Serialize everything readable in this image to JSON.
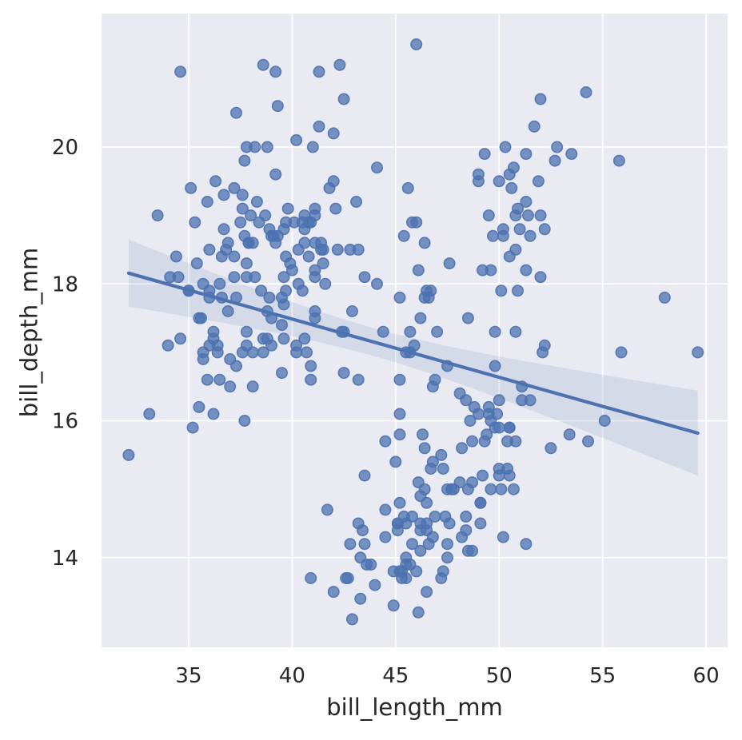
{
  "chart_data": {
    "type": "scatter",
    "title": "",
    "xlabel": "bill_length_mm",
    "ylabel": "bill_depth_mm",
    "x_ticks": [
      35,
      40,
      45,
      50,
      55,
      60
    ],
    "y_ticks": [
      14,
      16,
      18,
      20
    ],
    "x_domain": [
      30.79,
      61.04
    ],
    "y_domain": [
      12.69,
      21.95
    ],
    "grid": true,
    "legend": "none",
    "colors": {
      "point": "#4c72b0",
      "point_fill_opacity": 0.75,
      "point_edge_opacity": 0.9,
      "line": "#4c72b0",
      "band": "#4c72b0",
      "band_opacity": 0.13,
      "plot_background": "#eaeaf2",
      "grid_line": "#ffffff",
      "text": "#262626"
    },
    "regression": {
      "slope": -0.08502,
      "intercept": 20.8865,
      "x_start": 32.1,
      "x_end": 59.6
    },
    "ci_band": {
      "t": 1.967,
      "s": 1.92,
      "n": 342,
      "x_mean": 43.92,
      "sxx": 10163
    },
    "points": [
      [
        39.1,
        18.7
      ],
      [
        39.5,
        17.4
      ],
      [
        40.3,
        18.0
      ],
      [
        36.7,
        19.3
      ],
      [
        39.3,
        20.6
      ],
      [
        38.9,
        17.8
      ],
      [
        39.2,
        19.6
      ],
      [
        34.1,
        18.1
      ],
      [
        42.0,
        20.2
      ],
      [
        37.8,
        17.1
      ],
      [
        37.8,
        17.3
      ],
      [
        41.1,
        17.6
      ],
      [
        38.6,
        21.2
      ],
      [
        34.6,
        21.1
      ],
      [
        36.6,
        17.8
      ],
      [
        38.7,
        19.0
      ],
      [
        42.5,
        20.7
      ],
      [
        34.4,
        18.4
      ],
      [
        46.0,
        21.5
      ],
      [
        37.8,
        18.3
      ],
      [
        37.7,
        18.7
      ],
      [
        35.9,
        19.2
      ],
      [
        38.2,
        18.1
      ],
      [
        38.8,
        17.2
      ],
      [
        35.3,
        18.9
      ],
      [
        40.6,
        18.6
      ],
      [
        40.5,
        17.9
      ],
      [
        37.9,
        18.6
      ],
      [
        40.5,
        18.9
      ],
      [
        39.5,
        16.7
      ],
      [
        37.2,
        18.1
      ],
      [
        39.5,
        17.8
      ],
      [
        40.9,
        18.9
      ],
      [
        36.4,
        17.0
      ],
      [
        39.2,
        21.1
      ],
      [
        38.8,
        20.0
      ],
      [
        42.2,
        18.5
      ],
      [
        37.6,
        19.3
      ],
      [
        39.8,
        19.1
      ],
      [
        36.5,
        18.0
      ],
      [
        40.8,
        18.4
      ],
      [
        36.0,
        18.5
      ],
      [
        44.1,
        19.7
      ],
      [
        37.0,
        16.9
      ],
      [
        39.6,
        18.8
      ],
      [
        41.1,
        19.0
      ],
      [
        37.5,
        18.9
      ],
      [
        36.0,
        17.9
      ],
      [
        42.3,
        21.2
      ],
      [
        39.6,
        17.7
      ],
      [
        40.1,
        18.9
      ],
      [
        35.0,
        17.9
      ],
      [
        42.0,
        19.5
      ],
      [
        34.5,
        18.1
      ],
      [
        41.4,
        18.6
      ],
      [
        39.0,
        17.5
      ],
      [
        40.6,
        18.8
      ],
      [
        36.5,
        16.6
      ],
      [
        37.6,
        19.1
      ],
      [
        35.7,
        16.9
      ],
      [
        41.3,
        21.1
      ],
      [
        37.6,
        17.0
      ],
      [
        41.1,
        18.2
      ],
      [
        36.4,
        17.1
      ],
      [
        41.6,
        18.0
      ],
      [
        35.5,
        16.2
      ],
      [
        41.1,
        19.1
      ],
      [
        35.9,
        16.6
      ],
      [
        41.8,
        19.4
      ],
      [
        33.5,
        19.0
      ],
      [
        39.7,
        18.4
      ],
      [
        39.6,
        17.2
      ],
      [
        45.8,
        18.9
      ],
      [
        35.5,
        17.5
      ],
      [
        42.8,
        18.5
      ],
      [
        40.9,
        16.8
      ],
      [
        37.2,
        19.4
      ],
      [
        36.2,
        16.1
      ],
      [
        42.1,
        19.1
      ],
      [
        34.6,
        17.2
      ],
      [
        42.9,
        17.6
      ],
      [
        36.7,
        18.8
      ],
      [
        35.1,
        19.4
      ],
      [
        37.3,
        17.8
      ],
      [
        41.3,
        20.3
      ],
      [
        36.3,
        19.5
      ],
      [
        36.9,
        18.6
      ],
      [
        38.3,
        19.2
      ],
      [
        38.9,
        18.8
      ],
      [
        35.7,
        18.0
      ],
      [
        41.1,
        18.1
      ],
      [
        34.0,
        17.1
      ],
      [
        39.6,
        18.1
      ],
      [
        36.2,
        17.3
      ],
      [
        40.8,
        18.9
      ],
      [
        38.1,
        18.6
      ],
      [
        40.3,
        18.5
      ],
      [
        33.1,
        16.1
      ],
      [
        43.2,
        18.5
      ],
      [
        35.0,
        17.9
      ],
      [
        41.0,
        20.0
      ],
      [
        37.7,
        16.0
      ],
      [
        37.8,
        20.0
      ],
      [
        37.9,
        18.6
      ],
      [
        39.7,
        18.9
      ],
      [
        38.6,
        17.2
      ],
      [
        38.2,
        20.0
      ],
      [
        38.1,
        17.0
      ],
      [
        38.1,
        16.5
      ],
      [
        41.1,
        17.5
      ],
      [
        35.6,
        17.5
      ],
      [
        40.2,
        20.1
      ],
      [
        37.0,
        16.5
      ],
      [
        39.7,
        17.9
      ],
      [
        40.2,
        17.1
      ],
      [
        40.6,
        17.2
      ],
      [
        32.1,
        15.5
      ],
      [
        40.7,
        17.0
      ],
      [
        37.3,
        16.8
      ],
      [
        39.0,
        18.7
      ],
      [
        39.2,
        18.6
      ],
      [
        36.6,
        18.4
      ],
      [
        36.0,
        17.8
      ],
      [
        37.8,
        18.1
      ],
      [
        36.0,
        17.1
      ],
      [
        41.5,
        18.5
      ],
      [
        38.6,
        17.0
      ],
      [
        37.3,
        20.5
      ],
      [
        35.7,
        17.0
      ],
      [
        41.1,
        18.6
      ],
      [
        36.2,
        17.2
      ],
      [
        37.7,
        19.8
      ],
      [
        40.2,
        17.0
      ],
      [
        41.4,
        18.5
      ],
      [
        35.2,
        15.9
      ],
      [
        40.6,
        19.0
      ],
      [
        38.8,
        17.6
      ],
      [
        41.5,
        18.3
      ],
      [
        39.0,
        17.1
      ],
      [
        44.1,
        18.0
      ],
      [
        38.5,
        17.9
      ],
      [
        43.1,
        19.2
      ],
      [
        36.8,
        18.5
      ],
      [
        37.2,
        18.4
      ],
      [
        38.4,
        18.9
      ],
      [
        39.9,
        18.3
      ],
      [
        36.9,
        17.6
      ],
      [
        38.0,
        19.0
      ],
      [
        40.0,
        18.2
      ],
      [
        35.4,
        18.3
      ],
      [
        39.3,
        18.7
      ],
      [
        46.1,
        13.2
      ],
      [
        50.0,
        16.3
      ],
      [
        48.7,
        14.1
      ],
      [
        50.0,
        15.2
      ],
      [
        47.6,
        14.5
      ],
      [
        46.5,
        13.5
      ],
      [
        45.4,
        14.6
      ],
      [
        46.7,
        15.3
      ],
      [
        43.3,
        13.4
      ],
      [
        46.8,
        15.4
      ],
      [
        40.9,
        13.7
      ],
      [
        49.0,
        16.1
      ],
      [
        45.5,
        13.7
      ],
      [
        48.4,
        14.6
      ],
      [
        45.8,
        14.6
      ],
      [
        49.3,
        15.7
      ],
      [
        42.0,
        13.5
      ],
      [
        49.2,
        15.2
      ],
      [
        46.2,
        14.5
      ],
      [
        48.7,
        15.1
      ],
      [
        50.2,
        14.3
      ],
      [
        45.1,
        14.5
      ],
      [
        46.5,
        14.5
      ],
      [
        46.3,
        15.8
      ],
      [
        42.9,
        13.1
      ],
      [
        46.1,
        15.1
      ],
      [
        44.5,
        14.3
      ],
      [
        47.8,
        15.0
      ],
      [
        48.2,
        14.3
      ],
      [
        50.0,
        15.3
      ],
      [
        47.3,
        15.3
      ],
      [
        42.8,
        14.2
      ],
      [
        45.1,
        14.5
      ],
      [
        59.6,
        17.0
      ],
      [
        49.1,
        14.8
      ],
      [
        48.4,
        16.3
      ],
      [
        42.6,
        13.7
      ],
      [
        44.4,
        17.3
      ],
      [
        44.0,
        13.6
      ],
      [
        48.7,
        15.7
      ],
      [
        42.7,
        13.7
      ],
      [
        49.6,
        16.0
      ],
      [
        45.3,
        13.7
      ],
      [
        49.6,
        15.0
      ],
      [
        50.5,
        15.9
      ],
      [
        43.6,
        13.9
      ],
      [
        45.5,
        13.9
      ],
      [
        50.5,
        15.9
      ],
      [
        44.9,
        13.3
      ],
      [
        45.2,
        15.8
      ],
      [
        46.6,
        14.2
      ],
      [
        48.5,
        14.1
      ],
      [
        45.1,
        14.4
      ],
      [
        50.1,
        15.0
      ],
      [
        46.5,
        14.4
      ],
      [
        45.0,
        15.4
      ],
      [
        43.8,
        13.9
      ],
      [
        45.5,
        14.0
      ],
      [
        43.2,
        14.5
      ],
      [
        50.4,
        15.3
      ],
      [
        45.3,
        13.8
      ],
      [
        46.2,
        14.9
      ],
      [
        45.7,
        13.9
      ],
      [
        54.3,
        15.7
      ],
      [
        45.8,
        14.2
      ],
      [
        49.8,
        16.8
      ],
      [
        46.2,
        14.4
      ],
      [
        49.5,
        16.2
      ],
      [
        43.5,
        14.2
      ],
      [
        50.7,
        15.0
      ],
      [
        47.7,
        15.0
      ],
      [
        46.4,
        15.6
      ],
      [
        48.2,
        15.6
      ],
      [
        46.5,
        14.8
      ],
      [
        46.4,
        15.0
      ],
      [
        48.6,
        16.0
      ],
      [
        47.5,
        14.2
      ],
      [
        51.1,
        16.3
      ],
      [
        45.2,
        13.8
      ],
      [
        45.2,
        16.1
      ],
      [
        49.1,
        14.5
      ],
      [
        52.5,
        15.6
      ],
      [
        47.4,
        14.6
      ],
      [
        50.0,
        15.9
      ],
      [
        44.9,
        13.8
      ],
      [
        50.8,
        17.3
      ],
      [
        43.4,
        14.4
      ],
      [
        51.3,
        14.2
      ],
      [
        47.5,
        14.0
      ],
      [
        52.1,
        17.0
      ],
      [
        47.5,
        15.0
      ],
      [
        52.2,
        17.1
      ],
      [
        45.5,
        14.5
      ],
      [
        49.5,
        16.1
      ],
      [
        44.5,
        14.7
      ],
      [
        50.8,
        15.7
      ],
      [
        49.4,
        15.8
      ],
      [
        46.9,
        14.6
      ],
      [
        48.4,
        14.4
      ],
      [
        51.1,
        16.5
      ],
      [
        48.5,
        15.0
      ],
      [
        55.9,
        17.0
      ],
      [
        47.2,
        15.5
      ],
      [
        49.1,
        14.8
      ],
      [
        47.3,
        13.8
      ],
      [
        41.7,
        14.7
      ],
      [
        53.4,
        15.8
      ],
      [
        43.3,
        14.0
      ],
      [
        48.1,
        15.1
      ],
      [
        50.5,
        15.2
      ],
      [
        49.8,
        15.9
      ],
      [
        43.5,
        15.2
      ],
      [
        51.5,
        16.3
      ],
      [
        46.2,
        14.1
      ],
      [
        55.1,
        16.0
      ],
      [
        44.5,
        15.7
      ],
      [
        48.8,
        16.2
      ],
      [
        47.2,
        13.7
      ],
      [
        46.8,
        14.3
      ],
      [
        50.4,
        15.7
      ],
      [
        45.2,
        14.8
      ],
      [
        49.9,
        16.1
      ],
      [
        46.0,
        13.8
      ],
      [
        46.5,
        17.9
      ],
      [
        50.0,
        19.5
      ],
      [
        51.3,
        19.2
      ],
      [
        45.4,
        18.7
      ],
      [
        52.7,
        19.8
      ],
      [
        45.2,
        17.8
      ],
      [
        46.1,
        18.2
      ],
      [
        51.3,
        18.2
      ],
      [
        46.0,
        18.9
      ],
      [
        51.3,
        19.9
      ],
      [
        46.6,
        17.8
      ],
      [
        51.7,
        20.3
      ],
      [
        47.0,
        17.3
      ],
      [
        52.0,
        18.1
      ],
      [
        45.9,
        17.1
      ],
      [
        50.5,
        19.6
      ],
      [
        50.3,
        20.0
      ],
      [
        58.0,
        17.8
      ],
      [
        46.4,
        18.6
      ],
      [
        49.2,
        18.2
      ],
      [
        42.4,
        17.3
      ],
      [
        48.5,
        17.5
      ],
      [
        43.2,
        16.6
      ],
      [
        50.6,
        19.4
      ],
      [
        46.7,
        17.9
      ],
      [
        52.0,
        19.0
      ],
      [
        50.5,
        18.4
      ],
      [
        49.5,
        19.0
      ],
      [
        46.4,
        17.8
      ],
      [
        52.8,
        20.0
      ],
      [
        40.9,
        16.6
      ],
      [
        54.2,
        20.8
      ],
      [
        42.5,
        16.7
      ],
      [
        51.0,
        18.8
      ],
      [
        49.7,
        18.7
      ],
      [
        47.5,
        16.8
      ],
      [
        47.6,
        18.3
      ],
      [
        52.0,
        20.7
      ],
      [
        46.9,
        16.6
      ],
      [
        53.5,
        19.9
      ],
      [
        49.0,
        19.5
      ],
      [
        46.2,
        17.5
      ],
      [
        50.9,
        19.1
      ],
      [
        45.5,
        17.0
      ],
      [
        50.9,
        17.9
      ],
      [
        50.8,
        18.5
      ],
      [
        50.1,
        17.9
      ],
      [
        49.0,
        19.6
      ],
      [
        51.5,
        18.7
      ],
      [
        49.8,
        17.3
      ],
      [
        48.1,
        16.4
      ],
      [
        51.4,
        19.0
      ],
      [
        45.7,
        17.3
      ],
      [
        50.7,
        19.7
      ],
      [
        42.5,
        17.3
      ],
      [
        52.2,
        18.8
      ],
      [
        45.2,
        16.6
      ],
      [
        49.3,
        19.9
      ],
      [
        50.2,
        18.8
      ],
      [
        45.6,
        19.4
      ],
      [
        51.9,
        19.5
      ],
      [
        46.8,
        16.5
      ],
      [
        45.7,
        17.0
      ],
      [
        55.8,
        19.8
      ],
      [
        43.5,
        18.1
      ],
      [
        49.6,
        18.2
      ],
      [
        50.8,
        19.0
      ],
      [
        50.2,
        18.7
      ]
    ]
  }
}
